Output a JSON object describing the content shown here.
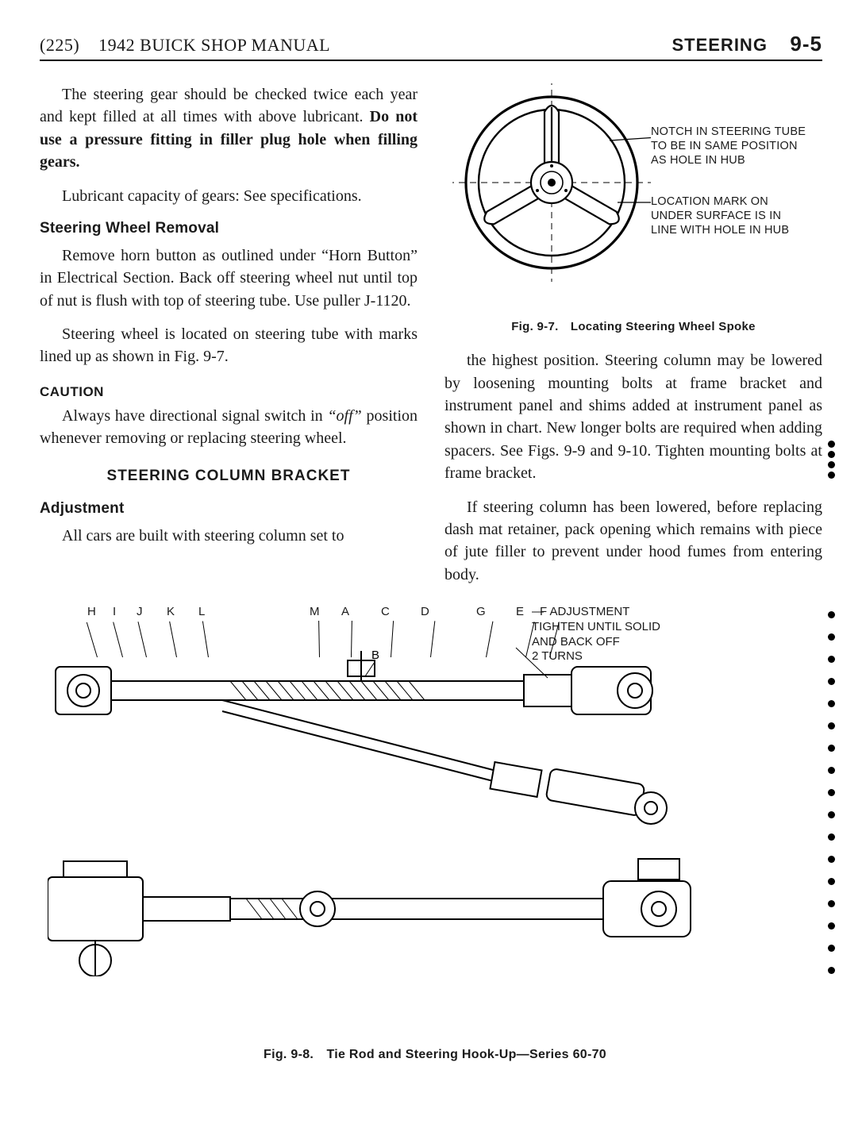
{
  "header": {
    "left_prefix": "(225)",
    "left_title": "1942 BUICK SHOP MANUAL",
    "right_label": "STEERING",
    "page_num": "9-5"
  },
  "leftCol": {
    "p1_a": "The steering gear should be checked twice each year and kept filled at all times with above lubricant. ",
    "p1_bold": "Do not use a pressure fitting in filler plug hole when filling gears.",
    "p2": "Lubricant capacity of gears: See specifications.",
    "h_removal": "Steering Wheel Removal",
    "p3": "Remove horn button as outlined under “Horn Button” in Electrical Section. Back off steering wheel nut until top of nut is flush with top of steering tube. Use puller J-1120.",
    "p4": "Steering wheel is located on steering tube with marks lined up as shown in Fig. 9-7.",
    "caution": "CAUTION",
    "p5_a": "Always have directional signal switch in ",
    "p5_off": "“off”",
    "p5_b": " position whenever removing or replacing steering wheel.",
    "h_bracket": "STEERING COLUMN BRACKET",
    "h_adj": "Adjustment",
    "p6": "All cars are built with steering column set to"
  },
  "fig97": {
    "callout1": "NOTCH IN STEERING TUBE TO BE IN SAME POSITION AS HOLE IN HUB",
    "callout2": "LOCATION MARK ON UNDER SURFACE IS IN LINE WITH HOLE IN HUB",
    "caption": "Fig. 9-7. Locating Steering Wheel Spoke",
    "colors": {
      "stroke": "#1a1a1a",
      "fill_light": "#ffffff"
    }
  },
  "rightCol": {
    "p1": "the highest position. Steering column may be lowered by loosening mounting bolts at frame bracket and instrument panel and shims added at instrument panel as shown in chart. New longer bolts are required when adding spacers. See Figs. 9-9 and 9-10. Tighten mounting bolts at frame bracket.",
    "p2": "If steering column has been lowered, before replacing dash mat retainer, pack opening which remains with piece of jute filler to prevent under hood fumes from entering body."
  },
  "fig98": {
    "letters": [
      "H",
      "I",
      "J",
      "K",
      "L",
      "M",
      "A",
      "C",
      "D",
      "G",
      "E",
      "F"
    ],
    "letter_x": [
      0,
      32,
      62,
      100,
      140,
      280,
      320,
      370,
      420,
      490,
      540,
      570
    ],
    "adj_label": "ADJUSTMENT",
    "adj_text": "TIGHTEN UNTIL SOLID\nAND BACK OFF\n2 TURNS",
    "caption": "Fig. 9-8. Tie Rod and Steering Hook-Up—Series 60-70",
    "dash": "—",
    "letter_b": "B"
  },
  "style": {
    "body_font_size_pt": 15,
    "heading_font": "Arial",
    "body_font": "Georgia",
    "text_color": "#1a1a1a",
    "bg_color": "#ffffff"
  }
}
